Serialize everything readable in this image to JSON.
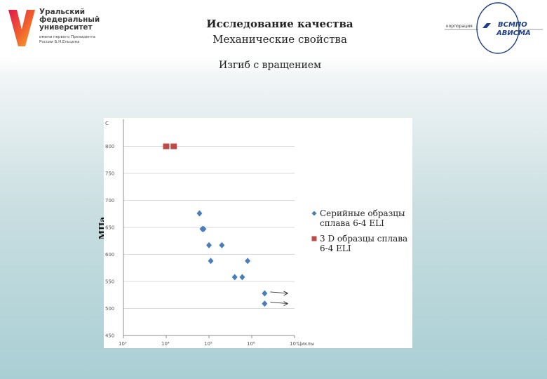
{
  "header": {
    "left_logo": {
      "name": "Уральский федеральный университет",
      "subtitle": "имени первого Президента России Б.Н.Ельцина"
    },
    "title": "Исследование качества",
    "subtitle": "Механические свойства",
    "right_logo": {
      "corporation": "корпорация",
      "brand": "ВСМПО",
      "brand2": "АВИСМА"
    }
  },
  "section_title": "Изгиб с вращением",
  "chart_data": {
    "type": "scatter",
    "title": "",
    "xlabel": "Циклы",
    "ylabel": "МПа",
    "xscale": "log",
    "xlim": [
      1000,
      10000000
    ],
    "ylim": [
      450,
      850
    ],
    "grid": "horizontal",
    "legend_position": "right",
    "y_ticks": [
      450,
      500,
      550,
      600,
      650,
      700,
      750,
      800,
      850
    ],
    "y_tick_labels": [
      "450",
      "500",
      "550",
      "600",
      "650",
      "700",
      "750",
      "800",
      "C"
    ],
    "x_ticks": [
      1000,
      10000,
      100000,
      1000000,
      10000000
    ],
    "x_tick_labels": [
      "10³",
      "10⁴",
      "10⁵",
      "10⁶",
      "10⁷"
    ],
    "series": [
      {
        "name": "Серийные образцы сплава 6-4 ELI",
        "marker": "diamond",
        "color": "#4a7ebb",
        "points": [
          {
            "x": 60000,
            "y": 676
          },
          {
            "x": 70000,
            "y": 647
          },
          {
            "x": 75000,
            "y": 647
          },
          {
            "x": 100000,
            "y": 617
          },
          {
            "x": 110000,
            "y": 588
          },
          {
            "x": 200000,
            "y": 617
          },
          {
            "x": 400000,
            "y": 558
          },
          {
            "x": 600000,
            "y": 558
          },
          {
            "x": 800000,
            "y": 588
          },
          {
            "x": 2000000,
            "y": 528
          },
          {
            "x": 2000000,
            "y": 509
          }
        ]
      },
      {
        "name": "3 D образцы сплава 6-4 ELI",
        "marker": "square",
        "color": "#be4b48",
        "points": [
          {
            "x": 10000,
            "y": 800
          },
          {
            "x": 15000,
            "y": 800
          }
        ]
      }
    ],
    "annotations": [
      {
        "type": "arrow",
        "from": {
          "x": 2000000,
          "y": 528
        },
        "to": {
          "x": 7000000,
          "y": 528
        }
      },
      {
        "type": "arrow",
        "from": {
          "x": 2000000,
          "y": 509
        },
        "to": {
          "x": 7000000,
          "y": 509
        }
      }
    ]
  }
}
